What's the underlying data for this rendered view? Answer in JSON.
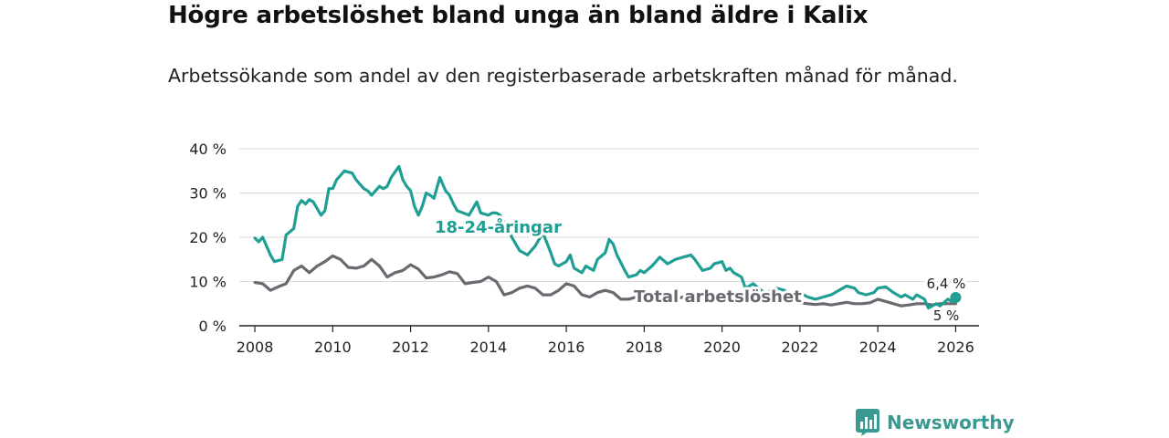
{
  "title": "Högre arbetslöshet bland unga än bland äldre i Kalix",
  "subtitle": "Arbetssökande som andel av den registerbaserade arbetskraften månad för månad.",
  "brand": "Newsworthy",
  "colors": {
    "youth": "#1f9e94",
    "total": "#6c6870",
    "grid": "#d9d9d9",
    "axis": "#222222",
    "brand": "#3a9a91"
  },
  "chart_data": {
    "type": "line",
    "title": "Högre arbetslöshet bland unga än bland äldre i Kalix",
    "xlabel": "",
    "ylabel": "",
    "xlim": [
      2007.6,
      2026.6
    ],
    "ylim": [
      0,
      40
    ],
    "xticks": [
      2008,
      2010,
      2012,
      2014,
      2016,
      2018,
      2020,
      2022,
      2024,
      2026
    ],
    "xtick_labels": [
      "2008",
      "2010",
      "2012",
      "2014",
      "2016",
      "2018",
      "2020",
      "2022",
      "2024",
      "2026"
    ],
    "yticks": [
      0,
      10,
      20,
      30,
      40
    ],
    "ytick_labels": [
      "0 %",
      "10 %",
      "20 %",
      "30 %",
      "40 %"
    ],
    "grid": true,
    "series": [
      {
        "name": "18-24-åringar",
        "label": "18-24-åringar",
        "color": "#1f9e94",
        "end_label": "6,4 %",
        "x": [
          2008.0,
          2008.1,
          2008.2,
          2008.4,
          2008.5,
          2008.7,
          2008.8,
          2009.0,
          2009.1,
          2009.2,
          2009.3,
          2009.4,
          2009.5,
          2009.7,
          2009.8,
          2009.9,
          2010.0,
          2010.1,
          2010.3,
          2010.5,
          2010.6,
          2010.8,
          2010.9,
          2011.0,
          2011.2,
          2011.3,
          2011.4,
          2011.5,
          2011.7,
          2011.8,
          2011.9,
          2012.0,
          2012.1,
          2012.2,
          2012.3,
          2012.4,
          2012.5,
          2012.6,
          2012.75,
          2012.9,
          2013.0,
          2013.1,
          2013.2,
          2013.5,
          2013.7,
          2013.8,
          2014.0,
          2014.1,
          2014.2,
          2014.3,
          2014.5,
          2014.6,
          2014.8,
          2015.0,
          2015.2,
          2015.4,
          2015.6,
          2015.7,
          2015.8,
          2016.0,
          2016.1,
          2016.2,
          2016.4,
          2016.5,
          2016.7,
          2016.8,
          2017.0,
          2017.1,
          2017.2,
          2017.3,
          2017.5,
          2017.6,
          2017.8,
          2017.9,
          2018.0,
          2018.2,
          2018.3,
          2018.4,
          2018.6,
          2018.8,
          2019.0,
          2019.2,
          2019.3,
          2019.5,
          2019.7,
          2019.8,
          2020.0,
          2020.1,
          2020.2,
          2020.3,
          2020.5,
          2020.6,
          2020.7,
          2020.8,
          2021.0,
          2021.1,
          2021.3,
          2021.4,
          2021.6,
          2021.8,
          2022.0,
          2022.2,
          2022.4,
          2022.6,
          2022.8,
          2023.0,
          2023.2,
          2023.4,
          2023.5,
          2023.7,
          2023.9,
          2024.0,
          2024.2,
          2024.4,
          2024.6,
          2024.7,
          2024.9,
          2025.0,
          2025.2,
          2025.3,
          2025.5,
          2025.6,
          2025.8,
          2025.9,
          2026.0
        ],
        "values": [
          19.8,
          19.0,
          20.0,
          16.0,
          14.5,
          15.0,
          20.5,
          22.0,
          27.0,
          28.3,
          27.5,
          28.5,
          28.0,
          25.0,
          26.0,
          31.0,
          31.0,
          33.0,
          35.0,
          34.5,
          33.0,
          31.0,
          30.5,
          29.5,
          31.5,
          31.0,
          31.5,
          33.5,
          36.0,
          33.0,
          31.5,
          30.5,
          27.0,
          25.0,
          27.0,
          30.0,
          29.5,
          28.8,
          33.5,
          30.5,
          29.5,
          27.5,
          26.0,
          25.0,
          28.0,
          25.5,
          25.0,
          25.5,
          25.5,
          25.0,
          22.0,
          20.0,
          17.0,
          16.0,
          18.0,
          21.0,
          16.5,
          14.0,
          13.5,
          14.5,
          16.0,
          13.0,
          12.0,
          13.5,
          12.5,
          15.0,
          16.5,
          19.5,
          18.5,
          16.0,
          12.5,
          11.0,
          11.5,
          12.5,
          12.0,
          13.5,
          14.5,
          15.5,
          14.0,
          15.0,
          15.5,
          16.0,
          15.0,
          12.5,
          13.0,
          14.0,
          14.5,
          12.5,
          13.0,
          12.0,
          11.0,
          8.5,
          9.0,
          9.5,
          8.0,
          7.5,
          8.0,
          8.5,
          8.0,
          7.0,
          7.5,
          6.5,
          6.0,
          6.5,
          7.0,
          8.0,
          9.0,
          8.5,
          7.5,
          7.0,
          7.5,
          8.5,
          8.8,
          7.5,
          6.5,
          7.0,
          6.0,
          7.0,
          6.0,
          4.0,
          5.0,
          4.5,
          6.0,
          5.5,
          6.4
        ]
      },
      {
        "name": "Total arbetslöshet",
        "label": "Total arbetslöshet",
        "color": "#6c6870",
        "end_label": "5 %",
        "x": [
          2008.0,
          2008.2,
          2008.4,
          2008.6,
          2008.8,
          2009.0,
          2009.2,
          2009.4,
          2009.6,
          2009.8,
          2010.0,
          2010.2,
          2010.4,
          2010.6,
          2010.8,
          2011.0,
          2011.2,
          2011.4,
          2011.6,
          2011.8,
          2012.0,
          2012.2,
          2012.4,
          2012.6,
          2012.8,
          2013.0,
          2013.2,
          2013.4,
          2013.6,
          2013.8,
          2014.0,
          2014.2,
          2014.4,
          2014.6,
          2014.8,
          2015.0,
          2015.2,
          2015.4,
          2015.6,
          2015.8,
          2016.0,
          2016.2,
          2016.4,
          2016.6,
          2016.8,
          2017.0,
          2017.2,
          2017.4,
          2017.6,
          2017.8,
          2018.0,
          2018.2,
          2018.4,
          2018.6,
          2018.8,
          2019.0,
          2019.2,
          2019.4,
          2019.6,
          2019.8,
          2020.0,
          2020.2,
          2020.4,
          2020.6,
          2020.8,
          2021.0,
          2021.2,
          2021.4,
          2021.6,
          2021.8,
          2022.0,
          2022.2,
          2022.4,
          2022.6,
          2022.8,
          2023.0,
          2023.2,
          2023.4,
          2023.6,
          2023.8,
          2024.0,
          2024.2,
          2024.4,
          2024.6,
          2024.8,
          2025.0,
          2025.2,
          2025.4,
          2025.6,
          2025.8,
          2026.0
        ],
        "values": [
          9.8,
          9.5,
          8.0,
          8.8,
          9.5,
          12.5,
          13.5,
          12.0,
          13.5,
          14.5,
          15.8,
          15.0,
          13.2,
          13.0,
          13.5,
          15.0,
          13.5,
          11.0,
          12.0,
          12.5,
          13.8,
          12.8,
          10.8,
          11.0,
          11.5,
          12.2,
          11.8,
          9.5,
          9.8,
          10.0,
          11.0,
          10.0,
          7.0,
          7.5,
          8.5,
          9.0,
          8.5,
          7.0,
          7.0,
          8.0,
          9.5,
          9.0,
          7.0,
          6.5,
          7.5,
          8.0,
          7.5,
          6.0,
          6.0,
          6.5,
          6.5,
          6.5,
          6.0,
          5.8,
          6.0,
          6.5,
          6.2,
          5.8,
          5.5,
          5.8,
          6.5,
          6.5,
          6.8,
          7.0,
          6.5,
          6.5,
          6.0,
          5.8,
          5.5,
          5.3,
          5.2,
          5.0,
          4.8,
          5.0,
          4.7,
          5.0,
          5.3,
          5.0,
          5.0,
          5.2,
          6.0,
          5.5,
          5.0,
          4.5,
          4.7,
          5.0,
          5.0,
          4.7,
          5.0,
          5.0,
          5.0
        ]
      }
    ]
  }
}
